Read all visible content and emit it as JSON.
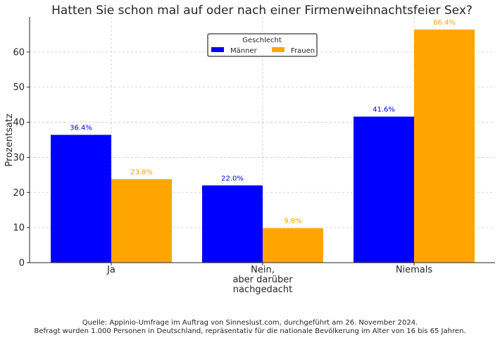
{
  "chart_data": {
    "type": "bar",
    "title": "Hatten Sie schon mal auf oder nach einer Firmenweihnachtsfeier Sex?",
    "xlabel": "",
    "ylabel": "Prozentsatz",
    "categories": [
      [
        "Ja"
      ],
      [
        "Nein,",
        "aber darüber",
        "nachgedacht"
      ],
      [
        "Niemals"
      ]
    ],
    "series": [
      {
        "name": "Männer",
        "color": "#0000ff",
        "values": [
          36.4,
          22.0,
          41.6
        ],
        "labels": [
          "36.4%",
          "22.0%",
          "41.6%"
        ]
      },
      {
        "name": "Frauen",
        "color": "#ffa500",
        "values": [
          23.8,
          9.8,
          66.4
        ],
        "labels": [
          "23.8%",
          "9.8%",
          "66.4%"
        ]
      }
    ],
    "ylim": [
      0,
      70
    ],
    "yticks": [
      0,
      10,
      20,
      30,
      40,
      50,
      60
    ],
    "legend": {
      "title": "Geschlecht",
      "placement": "top-center"
    },
    "grid": true
  },
  "source": {
    "line1": "Quelle: Appinio-Umfrage im Auftrag von Sinneslust.com, durchgeführt am 26. November 2024.",
    "line2": "Befragt wurden 1.000 Personen in Deutschland, repräsentativ für die nationale Bevölkerung im Alter von 16 bis 65 Jahren."
  }
}
